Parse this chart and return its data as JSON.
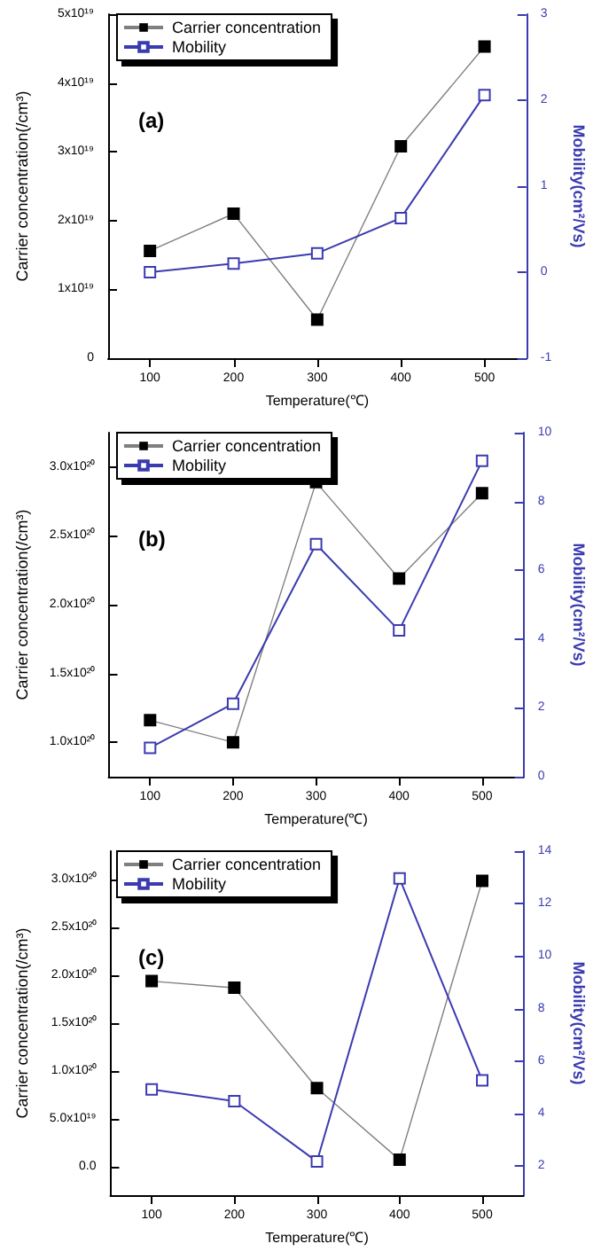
{
  "chart_data": [
    {
      "type": "line",
      "annotations": [
        "(a)"
      ],
      "xlabel": "Temperature(℃)",
      "ylabel": "Carrier concentration(/cm³)",
      "y2label": "Mobility(cm²/Vs)",
      "x": [
        100,
        200,
        300,
        400,
        500
      ],
      "xlim": [
        50,
        550
      ],
      "xticks": [
        100,
        200,
        300,
        400,
        500
      ],
      "ylim": [
        0,
        5e+19
      ],
      "yticks": [
        {
          "value": 0,
          "label": "0"
        },
        {
          "value": 1e+19,
          "label": "1x10¹⁹"
        },
        {
          "value": 2e+19,
          "label": "2x10¹⁹"
        },
        {
          "value": 3e+19,
          "label": "3x10¹⁹"
        },
        {
          "value": 4e+19,
          "label": "4x10¹⁹"
        },
        {
          "value": 5e+19,
          "label": "5x10¹⁹"
        }
      ],
      "y2lim": [
        -1,
        3
      ],
      "y2ticks": [
        -1,
        0,
        1,
        2,
        3
      ],
      "legend": "top left",
      "marker": "square",
      "grid": false,
      "series": [
        {
          "name": "Carrier concentration",
          "color": "#000000",
          "values": [
            1.56e+19,
            2.1e+19,
            5.6e+18,
            3.08e+19,
            4.53e+19
          ]
        },
        {
          "name": "Mobility",
          "color": "#3b3bb0",
          "axis": "y2",
          "values": [
            0.0,
            0.1,
            0.22,
            0.63,
            2.06
          ]
        }
      ]
    },
    {
      "type": "line",
      "annotations": [
        "(b)"
      ],
      "xlabel": "Temperature(℃)",
      "ylabel": "Carrier concentration(/cm³)",
      "y2label": "Mobility(cm²/Vs)",
      "x": [
        100,
        200,
        300,
        400,
        500
      ],
      "xlim": [
        50,
        550
      ],
      "xticks": [
        100,
        200,
        300,
        400,
        500
      ],
      "ylim": [
        7.5e+19,
        3.25e+20
      ],
      "yticks": [
        {
          "value": 1e+20,
          "label": "1.0x10²⁰"
        },
        {
          "value": 1.5e+20,
          "label": "1.5x10²⁰"
        },
        {
          "value": 2e+20,
          "label": "2.0x10²⁰"
        },
        {
          "value": 2.5e+20,
          "label": "2.5x10²⁰"
        },
        {
          "value": 3e+20,
          "label": "3.0x10²⁰"
        }
      ],
      "y2lim": [
        0,
        10
      ],
      "y2ticks": [
        0,
        2,
        4,
        6,
        8,
        10
      ],
      "legend": "top left",
      "marker": "square",
      "grid": false,
      "series": [
        {
          "name": "Carrier concentration",
          "color": "#000000",
          "values": [
            1.16e+20,
            1e+20,
            2.89e+20,
            2.19e+20,
            2.81e+20
          ]
        },
        {
          "name": "Mobility",
          "color": "#3b3bb0",
          "axis": "y2",
          "values": [
            0.84,
            2.12,
            6.76,
            4.25,
            9.18
          ]
        }
      ]
    },
    {
      "type": "line",
      "annotations": [
        "(c)"
      ],
      "xlabel": "Temperature(℃)",
      "ylabel": "Carrier concentration(/cm³)",
      "y2label": "Mobility(cm²/Vs)",
      "x": [
        100,
        200,
        300,
        400,
        500
      ],
      "xlim": [
        50,
        550
      ],
      "xticks": [
        100,
        200,
        300,
        400,
        500
      ],
      "ylim": [
        -3e+19,
        3.3e+20
      ],
      "yticks": [
        {
          "value": 0,
          "label": "0.0"
        },
        {
          "value": 5e+19,
          "label": "5.0x10¹⁹"
        },
        {
          "value": 1e+20,
          "label": "1.0x10²⁰"
        },
        {
          "value": 1.5e+20,
          "label": "1.5x10²⁰"
        },
        {
          "value": 2e+20,
          "label": "2.0x10²⁰"
        },
        {
          "value": 2.5e+20,
          "label": "2.5x10²⁰"
        },
        {
          "value": 3e+20,
          "label": "3.0x10²⁰"
        }
      ],
      "y2lim": [
        0.9,
        14
      ],
      "y2ticks": [
        2,
        4,
        6,
        8,
        10,
        12,
        14
      ],
      "legend": "top left",
      "marker": "square",
      "grid": false,
      "series": [
        {
          "name": "Carrier concentration",
          "color": "#000000",
          "values": [
            1.94e+20,
            1.87e+20,
            8.2e+19,
            7e+18,
            2.99e+20
          ]
        },
        {
          "name": "Mobility",
          "color": "#3b3bb0",
          "axis": "y2",
          "values": [
            4.93,
            4.48,
            2.18,
            12.96,
            5.27
          ]
        }
      ]
    }
  ]
}
